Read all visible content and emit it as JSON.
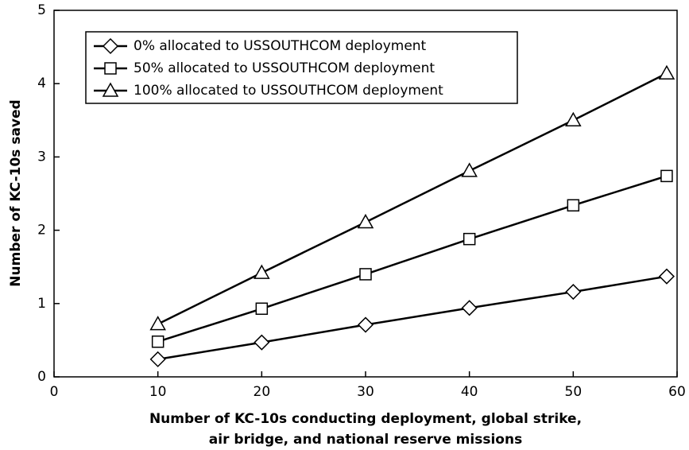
{
  "chart_data": {
    "type": "line",
    "xlabel": [
      "Number of KC-10s conducting deployment, global strike,",
      "air bridge, and national reserve missions"
    ],
    "ylabel": "Number of KC-10s saved",
    "x": [
      10,
      20,
      30,
      40,
      50,
      59
    ],
    "series": [
      {
        "name": "0% allocated to USSOUTHCOM deployment",
        "color": "#000000",
        "marker": "diamond",
        "values": [
          0.24,
          0.47,
          0.71,
          0.94,
          1.16,
          1.37
        ]
      },
      {
        "name": "50% allocated to USSOUTHCOM deployment",
        "color": "#000000",
        "marker": "square",
        "values": [
          0.48,
          0.93,
          1.4,
          1.88,
          2.34,
          2.74
        ]
      },
      {
        "name": "100% allocated to USSOUTHCOM deployment",
        "color": "#000000",
        "marker": "triangle",
        "values": [
          0.72,
          1.42,
          2.11,
          2.81,
          3.5,
          4.14
        ]
      }
    ],
    "xlim": [
      0,
      60
    ],
    "xticks": [
      0,
      10,
      20,
      30,
      40,
      50,
      60
    ],
    "ylim": [
      0,
      5
    ],
    "yticks": [
      0,
      1,
      2,
      3,
      4,
      5
    ],
    "grid": false,
    "legend": "upper left"
  }
}
